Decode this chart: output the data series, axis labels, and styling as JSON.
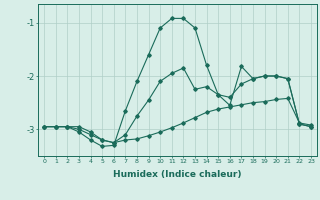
{
  "x": [
    0,
    1,
    2,
    3,
    4,
    5,
    6,
    7,
    8,
    9,
    10,
    11,
    12,
    13,
    14,
    15,
    16,
    17,
    18,
    19,
    20,
    21,
    22,
    23
  ],
  "line1": [
    -2.95,
    -2.95,
    -2.95,
    -2.95,
    -3.05,
    -3.2,
    -3.25,
    -3.1,
    -2.75,
    -2.45,
    -2.1,
    -1.95,
    -1.85,
    -2.25,
    -2.2,
    -2.35,
    -2.4,
    -2.15,
    -2.05,
    -2.0,
    -2.0,
    -2.05,
    -2.9,
    -2.95
  ],
  "line2": [
    -2.95,
    -2.95,
    -2.95,
    -3.05,
    -3.2,
    -3.32,
    -3.3,
    -2.65,
    -2.1,
    -1.6,
    -1.1,
    -0.92,
    -0.92,
    -1.1,
    -1.8,
    -2.35,
    -2.55,
    -1.82,
    -2.05,
    -2.0,
    -2.0,
    -2.05,
    -2.9,
    -2.95
  ],
  "line3": [
    -2.95,
    -2.95,
    -2.95,
    -3.0,
    -3.1,
    -3.2,
    -3.25,
    -3.2,
    -3.18,
    -3.12,
    -3.05,
    -2.97,
    -2.88,
    -2.78,
    -2.68,
    -2.62,
    -2.58,
    -2.54,
    -2.5,
    -2.48,
    -2.44,
    -2.42,
    -2.88,
    -2.92
  ],
  "line_color": "#1a6b5a",
  "bg_color": "#d8eee8",
  "grid_color": "#b0cfc8",
  "xlabel": "Humidex (Indice chaleur)",
  "ylim": [
    -3.5,
    -0.65
  ],
  "yticks": [
    -3,
    -2,
    -1
  ],
  "xlim": [
    -0.5,
    23.5
  ],
  "xticks": [
    0,
    1,
    2,
    3,
    4,
    5,
    6,
    7,
    8,
    9,
    10,
    11,
    12,
    13,
    14,
    15,
    16,
    17,
    18,
    19,
    20,
    21,
    22,
    23
  ]
}
